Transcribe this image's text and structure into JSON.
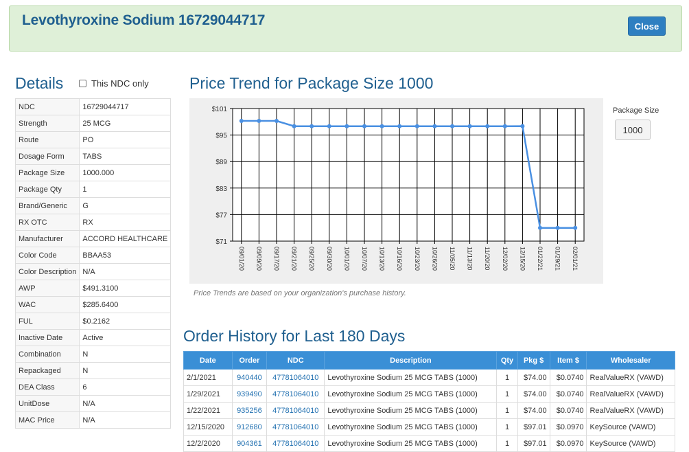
{
  "header": {
    "title": "Levothyroxine Sodium 16729044717",
    "close_label": "Close"
  },
  "details": {
    "title": "Details",
    "ndc_only_label": "This NDC only",
    "rows": [
      {
        "label": "NDC",
        "value": "16729044717"
      },
      {
        "label": "Strength",
        "value": "25 MCG"
      },
      {
        "label": "Route",
        "value": "PO"
      },
      {
        "label": "Dosage Form",
        "value": "TABS"
      },
      {
        "label": "Package Size",
        "value": "1000.000"
      },
      {
        "label": "Package Qty",
        "value": "1"
      },
      {
        "label": "Brand/Generic",
        "value": "G"
      },
      {
        "label": "RX OTC",
        "value": "RX"
      },
      {
        "label": "Manufacturer",
        "value": "ACCORD HEALTHCARE"
      },
      {
        "label": "Color Code",
        "value": "BBAA53"
      },
      {
        "label": "Color Description",
        "value": "N/A"
      },
      {
        "label": "AWP",
        "value": "$491.3100"
      },
      {
        "label": "WAC",
        "value": "$285.6400"
      },
      {
        "label": "FUL",
        "value": "$0.2162"
      },
      {
        "label": "Inactive Date",
        "value": "Active"
      },
      {
        "label": "Combination",
        "value": "N"
      },
      {
        "label": "Repackaged",
        "value": "N"
      },
      {
        "label": "DEA Class",
        "value": "6"
      },
      {
        "label": "UnitDose",
        "value": "N/A"
      },
      {
        "label": "MAC Price",
        "value": "N/A"
      }
    ]
  },
  "price_trend": {
    "title": "Price Trend for Package Size 1000",
    "note": "Price Trends are based on your organization's purchase history.",
    "package_size_label": "Package Size",
    "package_size_button": "1000"
  },
  "chart_data": {
    "type": "line",
    "categories": [
      "09/01/20",
      "09/09/20",
      "09/17/20",
      "09/21/20",
      "09/25/20",
      "09/30/20",
      "10/01/20",
      "10/07/20",
      "10/13/20",
      "10/16/20",
      "10/23/20",
      "10/26/20",
      "11/05/20",
      "11/13/20",
      "11/20/20",
      "12/02/20",
      "12/15/20",
      "01/22/21",
      "01/29/21",
      "02/01/21"
    ],
    "values": [
      98.2,
      98.2,
      98.2,
      97.0,
      97.0,
      97.0,
      97.0,
      97.0,
      97.0,
      97.0,
      97.0,
      97.0,
      97.0,
      97.0,
      97.0,
      97.0,
      97.01,
      74.0,
      74.0,
      74.0
    ],
    "y_ticks": [
      "$101",
      "$95",
      "$89",
      "$83",
      "$77",
      "$71"
    ],
    "ylim": [
      71,
      101
    ],
    "grid": true,
    "line_color": "#4a90e2"
  },
  "orders": {
    "title": "Order History for Last 180 Days",
    "columns": [
      "Date",
      "Order",
      "NDC",
      "Description",
      "Qty",
      "Pkg $",
      "Item $",
      "Wholesaler"
    ],
    "rows": [
      {
        "date": "2/1/2021",
        "order": "940440",
        "ndc": "47781064010",
        "description": "Levothyroxine Sodium 25 MCG TABS (1000)",
        "qty": "1",
        "pkg": "$74.00",
        "item": "$0.0740",
        "wholesaler": "RealValueRX (VAWD)"
      },
      {
        "date": "1/29/2021",
        "order": "939490",
        "ndc": "47781064010",
        "description": "Levothyroxine Sodium 25 MCG TABS (1000)",
        "qty": "1",
        "pkg": "$74.00",
        "item": "$0.0740",
        "wholesaler": "RealValueRX (VAWD)"
      },
      {
        "date": "1/22/2021",
        "order": "935256",
        "ndc": "47781064010",
        "description": "Levothyroxine Sodium 25 MCG TABS (1000)",
        "qty": "1",
        "pkg": "$74.00",
        "item": "$0.0740",
        "wholesaler": "RealValueRX (VAWD)"
      },
      {
        "date": "12/15/2020",
        "order": "912680",
        "ndc": "47781064010",
        "description": "Levothyroxine Sodium 25 MCG TABS (1000)",
        "qty": "1",
        "pkg": "$97.01",
        "item": "$0.0970",
        "wholesaler": "KeySource (VAWD)"
      },
      {
        "date": "12/2/2020",
        "order": "904361",
        "ndc": "47781064010",
        "description": "Levothyroxine Sodium 25 MCG TABS (1000)",
        "qty": "1",
        "pkg": "$97.01",
        "item": "$0.0970",
        "wholesaler": "KeySource (VAWD)"
      }
    ]
  }
}
